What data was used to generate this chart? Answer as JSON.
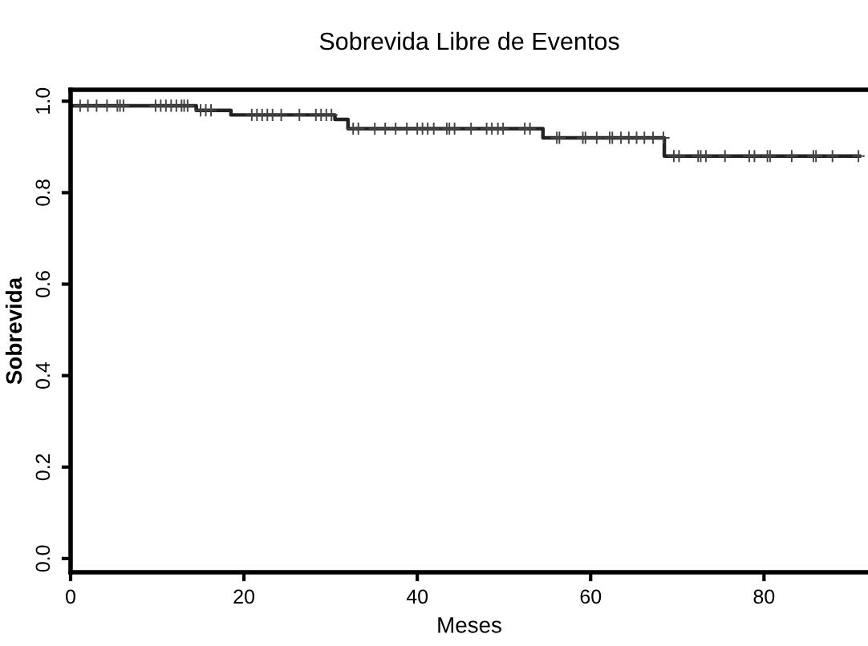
{
  "chart_data": {
    "type": "step",
    "title": "Sobrevida Libre de Eventos",
    "xlabel": "Meses",
    "ylabel": "Sobrevida",
    "xlim": [
      0,
      92
    ],
    "xticks": [
      0,
      20,
      40,
      60,
      80
    ],
    "ylim": [
      -0.03,
      1.025
    ],
    "yticks": [
      {
        "value": 0,
        "label": "0.0"
      },
      {
        "value": 0.2,
        "label": "0.2"
      },
      {
        "value": 0.4,
        "label": "0.4"
      },
      {
        "value": 0.6,
        "label": "0.6"
      },
      {
        "value": 0.8,
        "label": "0.8"
      },
      {
        "value": 1,
        "label": "1.0"
      }
    ],
    "grid": false,
    "legend": false,
    "series": [
      {
        "color": "#222222",
        "marker": "none",
        "x": [
          0,
          14.5,
          18.5,
          30.5,
          32,
          54.5,
          68.5,
          91
        ],
        "values": [
          0.99,
          0.98,
          0.97,
          0.96,
          0.94,
          0.92,
          0.88,
          0.88
        ]
      },
      {
        "type": "scatter",
        "color": "#444444",
        "marker": "cross",
        "x": [
          1.1,
          2.0,
          3.0,
          4.2,
          5.4,
          5.7,
          6.1,
          9.8,
          10.4,
          11.0,
          11.6,
          12.2,
          12.8,
          13.1,
          13.5,
          15.0,
          15.6,
          16.2,
          20.9,
          21.5,
          22.1,
          22.7,
          23.3,
          24.3,
          26.4,
          28.3,
          28.9,
          29.5,
          30.1,
          32.6,
          33.2,
          35.1,
          36.3,
          37.5,
          38.8,
          40.0,
          40.6,
          41.2,
          41.9,
          43.4,
          43.7,
          44.3,
          46.2,
          48.0,
          48.6,
          49.3,
          49.9,
          52.4,
          53.0,
          56.1,
          56.4,
          59.1,
          59.4,
          60.7,
          62.2,
          62.5,
          63.5,
          64.4,
          65.3,
          66.2,
          67.2,
          68.4,
          69.6,
          70.2,
          72.4,
          72.7,
          73.3,
          75.5,
          78.3,
          78.9,
          80.4,
          80.7,
          83.2,
          85.7,
          86.0,
          87.9,
          90.9
        ],
        "values": [
          0.99,
          0.99,
          0.99,
          0.99,
          0.99,
          0.99,
          0.99,
          0.99,
          0.99,
          0.99,
          0.99,
          0.99,
          0.99,
          0.99,
          0.99,
          0.98,
          0.98,
          0.98,
          0.97,
          0.97,
          0.97,
          0.97,
          0.97,
          0.97,
          0.97,
          0.97,
          0.97,
          0.97,
          0.97,
          0.94,
          0.94,
          0.94,
          0.94,
          0.94,
          0.94,
          0.94,
          0.94,
          0.94,
          0.94,
          0.94,
          0.94,
          0.94,
          0.94,
          0.94,
          0.94,
          0.94,
          0.94,
          0.94,
          0.94,
          0.92,
          0.92,
          0.92,
          0.92,
          0.92,
          0.92,
          0.92,
          0.92,
          0.92,
          0.92,
          0.92,
          0.92,
          0.92,
          0.88,
          0.88,
          0.88,
          0.88,
          0.88,
          0.88,
          0.88,
          0.88,
          0.88,
          0.88,
          0.88,
          0.88,
          0.88,
          0.88,
          0.88
        ]
      }
    ]
  }
}
